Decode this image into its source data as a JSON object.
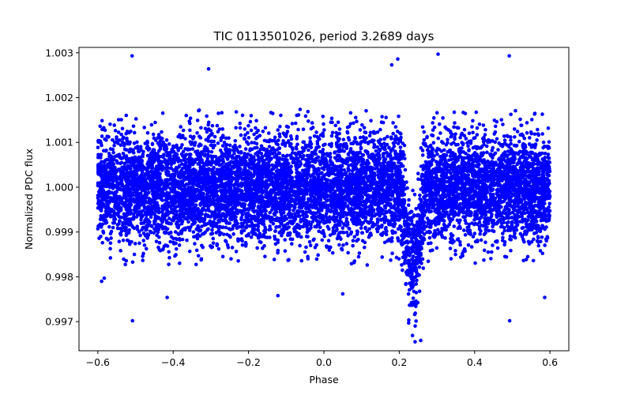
{
  "colors": {
    "points": "#0000ff",
    "axes": "#000000",
    "background": "#ffffff"
  },
  "chart_data": {
    "type": "scatter",
    "title": "TIC 0113501026, period 3.2689 days",
    "xlabel": "Phase",
    "ylabel": "Normalized PDC flux",
    "xlim": [
      -0.65,
      0.65
    ],
    "ylim": [
      0.99635,
      1.00312
    ],
    "xticks": [
      -0.6,
      -0.4,
      -0.2,
      0.0,
      0.2,
      0.4,
      0.6
    ],
    "xtick_labels": [
      "−0.6",
      "−0.4",
      "−0.2",
      "0.0",
      "0.2",
      "0.4",
      "0.6"
    ],
    "yticks": [
      0.997,
      0.998,
      0.999,
      1.0,
      1.001,
      1.002,
      1.003
    ],
    "ytick_labels": [
      "0.997",
      "0.998",
      "0.999",
      "1.000",
      "1.001",
      "1.002",
      "1.003"
    ],
    "grid": false,
    "series": [
      {
        "name": "PDC flux",
        "color": "#0000ff",
        "phase_range": [
          -0.6,
          0.6
        ],
        "baseline_flux": 1.0,
        "baseline_scatter_sigma": 0.0006,
        "transit": {
          "center_phase": 0.236,
          "depth": 0.0017,
          "half_width": 0.035
        },
        "outliers": [
          {
            "x": -0.509,
            "y": 1.00293
          },
          {
            "x": -0.508,
            "y": 0.99702
          },
          {
            "x": 0.492,
            "y": 1.00293
          },
          {
            "x": 0.493,
            "y": 0.99702
          },
          {
            "x": 0.303,
            "y": 1.00297
          },
          {
            "x": -0.306,
            "y": 1.00264
          },
          {
            "x": 0.18,
            "y": 1.00273
          },
          {
            "x": 0.196,
            "y": 1.00286
          },
          {
            "x": -0.416,
            "y": 0.99754
          },
          {
            "x": -0.122,
            "y": 0.99758
          },
          {
            "x": 0.05,
            "y": 0.99762
          },
          {
            "x": 0.586,
            "y": 0.99754
          },
          {
            "x": 0.242,
            "y": 0.99655
          },
          {
            "x": 0.257,
            "y": 0.99658
          },
          {
            "x": 0.225,
            "y": 0.99697
          },
          {
            "x": -0.59,
            "y": 0.9979
          },
          {
            "x": -0.583,
            "y": 0.99797
          }
        ]
      }
    ]
  }
}
